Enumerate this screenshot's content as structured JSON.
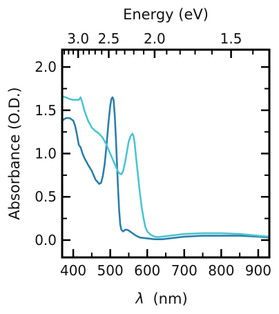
{
  "chart_data": {
    "type": "line",
    "xlabel_symbol": "λ",
    "xlabel_unit": "(nm)",
    "ylabel": "Absorbance (O.D.)",
    "top_axis_label": "Energy (eV)",
    "xlim": [
      370,
      930
    ],
    "ylim": [
      -0.2,
      2.2
    ],
    "x_ticks": [
      400,
      500,
      600,
      700,
      800,
      900
    ],
    "x_tick_labels": [
      "400",
      "500",
      "600",
      "700",
      "800",
      "900"
    ],
    "y_ticks": [
      0.0,
      0.5,
      1.0,
      1.5,
      2.0
    ],
    "y_tick_labels": [
      "0.0",
      "0.5",
      "1.0",
      "1.5",
      "2.0"
    ],
    "top_ticks_ev": [
      3.0,
      2.5,
      2.0,
      1.5
    ],
    "top_tick_labels": [
      "3.0",
      "2.5",
      "2.0",
      "1.5"
    ],
    "series": [
      {
        "color": "#2a7fab",
        "x": [
          370,
          380,
          390,
          400,
          405,
          410,
          415,
          420,
          425,
          430,
          440,
          450,
          460,
          470,
          475,
          480,
          485,
          490,
          495,
          500,
          503,
          506,
          509,
          512,
          515,
          518,
          521,
          524,
          527,
          530,
          535,
          540,
          545,
          550,
          560,
          570,
          580,
          600,
          620,
          640,
          660,
          700,
          750,
          800,
          850,
          900,
          930
        ],
        "y": [
          1.38,
          1.41,
          1.41,
          1.38,
          1.32,
          1.22,
          1.1,
          1.07,
          1.0,
          0.95,
          0.87,
          0.8,
          0.7,
          0.65,
          0.66,
          0.74,
          0.88,
          1.1,
          1.35,
          1.55,
          1.63,
          1.65,
          1.62,
          1.45,
          1.2,
          0.9,
          0.6,
          0.35,
          0.18,
          0.12,
          0.1,
          0.12,
          0.12,
          0.11,
          0.08,
          0.05,
          0.03,
          0.02,
          0.01,
          0.01,
          0.02,
          0.04,
          0.05,
          0.05,
          0.05,
          0.04,
          0.03
        ]
      },
      {
        "color": "#4cc4d0",
        "x": [
          370,
          380,
          390,
          400,
          410,
          415,
          420,
          425,
          430,
          440,
          450,
          460,
          470,
          480,
          490,
          500,
          510,
          520,
          525,
          530,
          535,
          540,
          545,
          550,
          555,
          560,
          563,
          566,
          570,
          575,
          580,
          585,
          590,
          595,
          600,
          610,
          620,
          630,
          640,
          660,
          700,
          750,
          800,
          850,
          900,
          930
        ],
        "y": [
          1.66,
          1.65,
          1.63,
          1.62,
          1.62,
          1.62,
          1.65,
          1.58,
          1.5,
          1.38,
          1.3,
          1.26,
          1.23,
          1.18,
          1.1,
          1.0,
          0.9,
          0.8,
          0.77,
          0.76,
          0.8,
          0.9,
          1.02,
          1.14,
          1.2,
          1.23,
          1.2,
          1.12,
          0.95,
          0.75,
          0.55,
          0.38,
          0.25,
          0.15,
          0.1,
          0.06,
          0.04,
          0.035,
          0.04,
          0.05,
          0.07,
          0.08,
          0.08,
          0.07,
          0.05,
          0.04
        ]
      }
    ]
  }
}
